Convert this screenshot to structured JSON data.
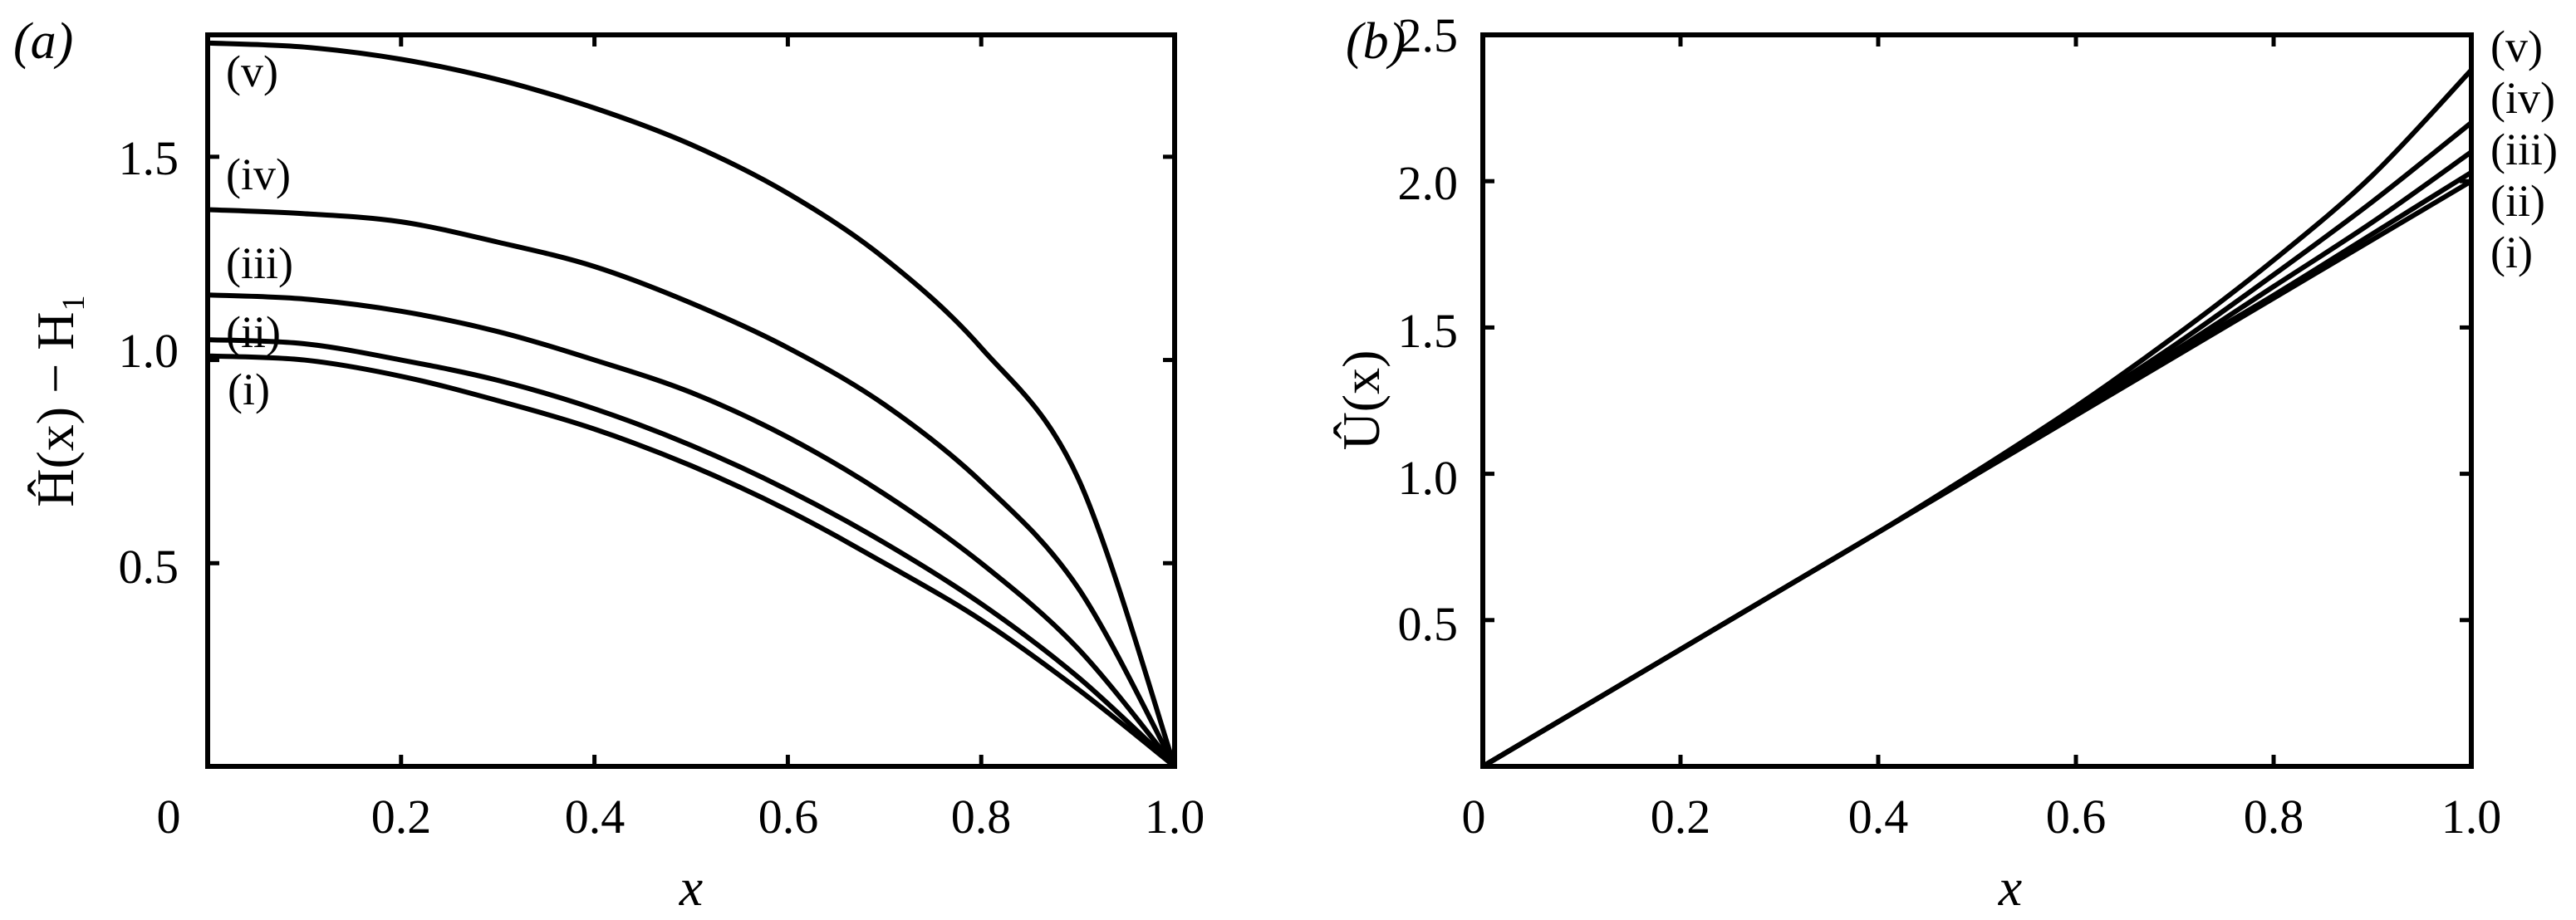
{
  "figure": {
    "panel_a": {
      "label": "(a)",
      "ylabel": "Ĥ(x) − H₁",
      "xlabel": "x",
      "xticks": [
        "0",
        "0.2",
        "0.4",
        "0.6",
        "0.8",
        "1.0"
      ],
      "yticks": [
        "0.5",
        "1.0",
        "1.5"
      ],
      "curve_labels": [
        "(i)",
        "(ii)",
        "(iii)",
        "(iv)",
        "(v)"
      ]
    },
    "panel_b": {
      "label": "(b)",
      "ylabel": "Û(x)",
      "xlabel": "x",
      "xticks": [
        "0",
        "0.2",
        "0.4",
        "0.6",
        "0.8",
        "1.0"
      ],
      "yticks": [
        "0.5",
        "1.0",
        "1.5",
        "2.0",
        "2.5"
      ],
      "curve_labels": [
        "(i)",
        "(ii)",
        "(iii)",
        "(iv)",
        "(v)"
      ]
    }
  },
  "chart_data": [
    {
      "type": "line",
      "title": "(a)",
      "xlabel": "x",
      "ylabel": "Ĥ(x) − H₁",
      "xlim": [
        0,
        1.0
      ],
      "ylim": [
        0,
        1.8
      ],
      "grid": false,
      "legend": "inline labels near left axis",
      "x": [
        0,
        0.1,
        0.2,
        0.3,
        0.4,
        0.5,
        0.6,
        0.7,
        0.8,
        0.9,
        1.0
      ],
      "series": [
        {
          "name": "(i)",
          "values": [
            1.01,
            1.0,
            0.96,
            0.9,
            0.83,
            0.74,
            0.63,
            0.5,
            0.36,
            0.19,
            0.0
          ]
        },
        {
          "name": "(ii)",
          "values": [
            1.05,
            1.04,
            1.0,
            0.95,
            0.88,
            0.79,
            0.68,
            0.55,
            0.4,
            0.22,
            0.0
          ]
        },
        {
          "name": "(iii)",
          "values": [
            1.16,
            1.15,
            1.12,
            1.07,
            1.0,
            0.92,
            0.81,
            0.67,
            0.5,
            0.29,
            0.0
          ]
        },
        {
          "name": "(iv)",
          "values": [
            1.37,
            1.36,
            1.34,
            1.29,
            1.23,
            1.14,
            1.03,
            0.89,
            0.7,
            0.44,
            0.0
          ]
        },
        {
          "name": "(v)",
          "values": [
            1.78,
            1.77,
            1.74,
            1.69,
            1.62,
            1.53,
            1.41,
            1.25,
            1.03,
            0.71,
            0.0
          ]
        }
      ]
    },
    {
      "type": "line",
      "title": "(b)",
      "xlabel": "x",
      "ylabel": "Û(x)",
      "xlim": [
        0,
        1.0
      ],
      "ylim": [
        0,
        2.5
      ],
      "grid": false,
      "legend": "inline labels to the right of the axis",
      "x": [
        0,
        0.1,
        0.2,
        0.3,
        0.4,
        0.5,
        0.6,
        0.7,
        0.8,
        0.9,
        1.0
      ],
      "series": [
        {
          "name": "(i)",
          "values": [
            0,
            0.2,
            0.4,
            0.6,
            0.8,
            1.0,
            1.2,
            1.4,
            1.6,
            1.8,
            2.0
          ]
        },
        {
          "name": "(ii)",
          "values": [
            0,
            0.2,
            0.4,
            0.6,
            0.8,
            1.0,
            1.2,
            1.41,
            1.61,
            1.82,
            2.03
          ]
        },
        {
          "name": "(iii)",
          "values": [
            0,
            0.2,
            0.4,
            0.6,
            0.8,
            1.0,
            1.21,
            1.42,
            1.64,
            1.86,
            2.1
          ]
        },
        {
          "name": "(iv)",
          "values": [
            0,
            0.2,
            0.4,
            0.6,
            0.8,
            1.01,
            1.22,
            1.44,
            1.68,
            1.93,
            2.2
          ]
        },
        {
          "name": "(v)",
          "values": [
            0,
            0.2,
            0.4,
            0.6,
            0.8,
            1.01,
            1.23,
            1.47,
            1.73,
            2.02,
            2.38
          ]
        }
      ]
    }
  ]
}
